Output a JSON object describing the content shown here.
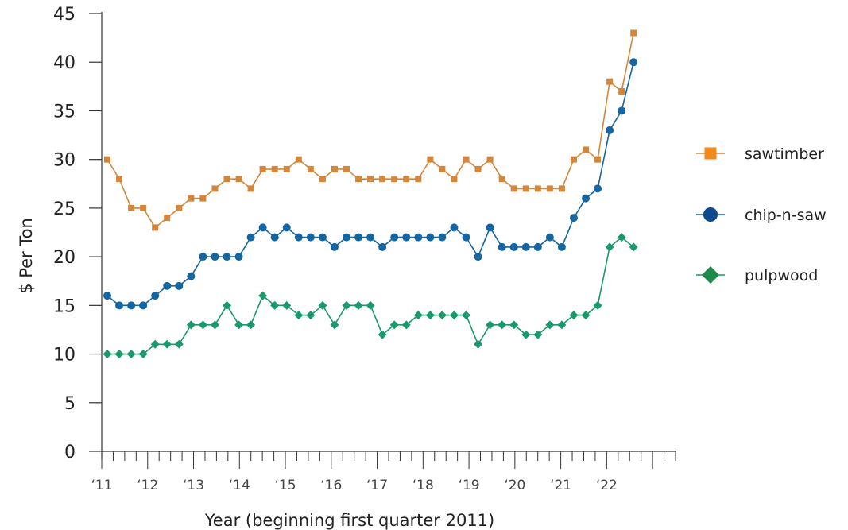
{
  "chart_data": {
    "type": "line",
    "xlabel": "Year (beginning first quarter 2011)",
    "ylabel": "$ Per Ton",
    "ylim": [
      0,
      45
    ],
    "yticks": [
      0,
      5,
      10,
      15,
      20,
      25,
      30,
      35,
      40,
      45
    ],
    "x_tick_labels": [
      "‘11",
      "‘12",
      "‘13",
      "‘14",
      "‘15",
      "‘16",
      "‘17",
      "‘18",
      "‘19",
      "‘20",
      "‘21",
      "‘22"
    ],
    "x_period": "quarterly, 2011 Q1 through 2022 Q1",
    "legend_position": "right",
    "series": [
      {
        "name": "sawtimber",
        "color": "#d4873a",
        "marker": "square",
        "values": [
          30,
          28,
          25,
          25,
          23,
          24,
          25,
          26,
          26,
          27,
          28,
          28,
          27,
          29,
          29,
          29,
          30,
          29,
          28,
          29,
          29,
          28,
          28,
          28,
          28,
          28,
          28,
          30,
          29,
          28,
          30,
          29,
          30,
          28,
          27,
          27,
          27,
          27,
          27,
          30,
          31,
          30,
          38,
          37,
          43
        ]
      },
      {
        "name": "chip-n-saw",
        "color": "#1565a0",
        "marker": "circle",
        "values": [
          16,
          15,
          15,
          15,
          16,
          17,
          17,
          18,
          20,
          20,
          20,
          20,
          22,
          23,
          22,
          23,
          22,
          22,
          22,
          21,
          22,
          22,
          22,
          21,
          22,
          22,
          22,
          22,
          22,
          23,
          22,
          20,
          23,
          21,
          21,
          21,
          21,
          22,
          21,
          24,
          26,
          27,
          33,
          35,
          40
        ]
      },
      {
        "name": "pulpwood",
        "color": "#1a9a6a",
        "marker": "diamond",
        "values": [
          10,
          10,
          10,
          10,
          11,
          11,
          11,
          13,
          13,
          13,
          15,
          13,
          13,
          16,
          15,
          15,
          14,
          14,
          15,
          13,
          15,
          15,
          15,
          12,
          13,
          13,
          14,
          14,
          14,
          14,
          14,
          11,
          13,
          13,
          13,
          12,
          12,
          13,
          13,
          14,
          14,
          15,
          21,
          22,
          21
        ]
      }
    ]
  },
  "legend_icon_colors": {
    "sawtimber": "#f08a1a",
    "chip-n-saw": "#0d4a8c",
    "pulpwood": "#1e8a4a"
  }
}
